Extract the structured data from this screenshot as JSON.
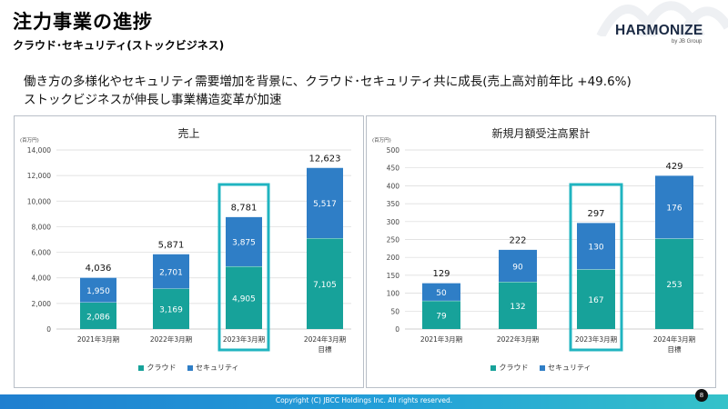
{
  "header": {
    "title": "注力事業の進捗",
    "subtitle": "クラウド･セキュリティ(ストックビジネス)",
    "logo": "HARMONIZE",
    "logo_sub": "by JB Group"
  },
  "lead": {
    "line1": "働き方の多様化やセキュリティ需要増加を背景に、クラウド･セキュリティ共に成長(売上高対前年比 +49.6%)",
    "line2": "ストックビジネスが伸長し事業構造変革が加速"
  },
  "colors": {
    "cloud": "#17a29a",
    "security": "#2f7ec6",
    "highlight": "#20b4c0",
    "grid": "#d9d9d9"
  },
  "chart_data": [
    {
      "type": "bar",
      "stacked": true,
      "title": "売上",
      "unit": "(百万円)",
      "categories": [
        "2021年3月期",
        "2022年3月期",
        "2023年3月期",
        "2024年3月期"
      ],
      "category_sub": [
        "",
        "",
        "",
        "目標"
      ],
      "series": [
        {
          "name": "クラウド",
          "values": [
            2086,
            3169,
            4905,
            7105
          ]
        },
        {
          "name": "セキュリティ",
          "values": [
            1950,
            2701,
            3875,
            5517
          ]
        }
      ],
      "totals": [
        "4,036",
        "5,871",
        "8,781",
        "12,623"
      ],
      "value_labels": [
        [
          "2,086",
          "3,169",
          "4,905",
          "7,105"
        ],
        [
          "1,950",
          "2,701",
          "3,875",
          "5,517"
        ]
      ],
      "ylim": [
        0,
        14000
      ],
      "yticks": [
        0,
        2000,
        4000,
        6000,
        8000,
        10000,
        12000,
        14000
      ],
      "ytick_labels": [
        "0",
        "2,000",
        "4,000",
        "6,000",
        "8,000",
        "10,000",
        "12,000",
        "14,000"
      ],
      "highlight_index": 2,
      "grid": true,
      "legend_position": "bottom"
    },
    {
      "type": "bar",
      "stacked": true,
      "title": "新規月額受注高累計",
      "unit": "(百万円)",
      "categories": [
        "2021年3月期",
        "2022年3月期",
        "2023年3月期",
        "2024年3月期"
      ],
      "category_sub": [
        "",
        "",
        "",
        "目標"
      ],
      "series": [
        {
          "name": "クラウド",
          "values": [
            79,
            132,
            167,
            253
          ]
        },
        {
          "name": "セキュリティ",
          "values": [
            50,
            90,
            130,
            176
          ]
        }
      ],
      "totals": [
        "129",
        "222",
        "297",
        "429"
      ],
      "value_labels": [
        [
          "79",
          "132",
          "167",
          "253"
        ],
        [
          "50",
          "90",
          "130",
          "176"
        ]
      ],
      "ylim": [
        0,
        500
      ],
      "yticks": [
        0,
        50,
        100,
        150,
        200,
        250,
        300,
        350,
        400,
        450,
        500
      ],
      "ytick_labels": [
        "0",
        "50",
        "100",
        "150",
        "200",
        "250",
        "300",
        "350",
        "400",
        "450",
        "500"
      ],
      "highlight_index": 2,
      "grid": true,
      "legend_position": "bottom"
    }
  ],
  "footer": {
    "copyright": "Copyright (C) JBCC Holdings Inc. All rights reserved.",
    "page": "8"
  }
}
